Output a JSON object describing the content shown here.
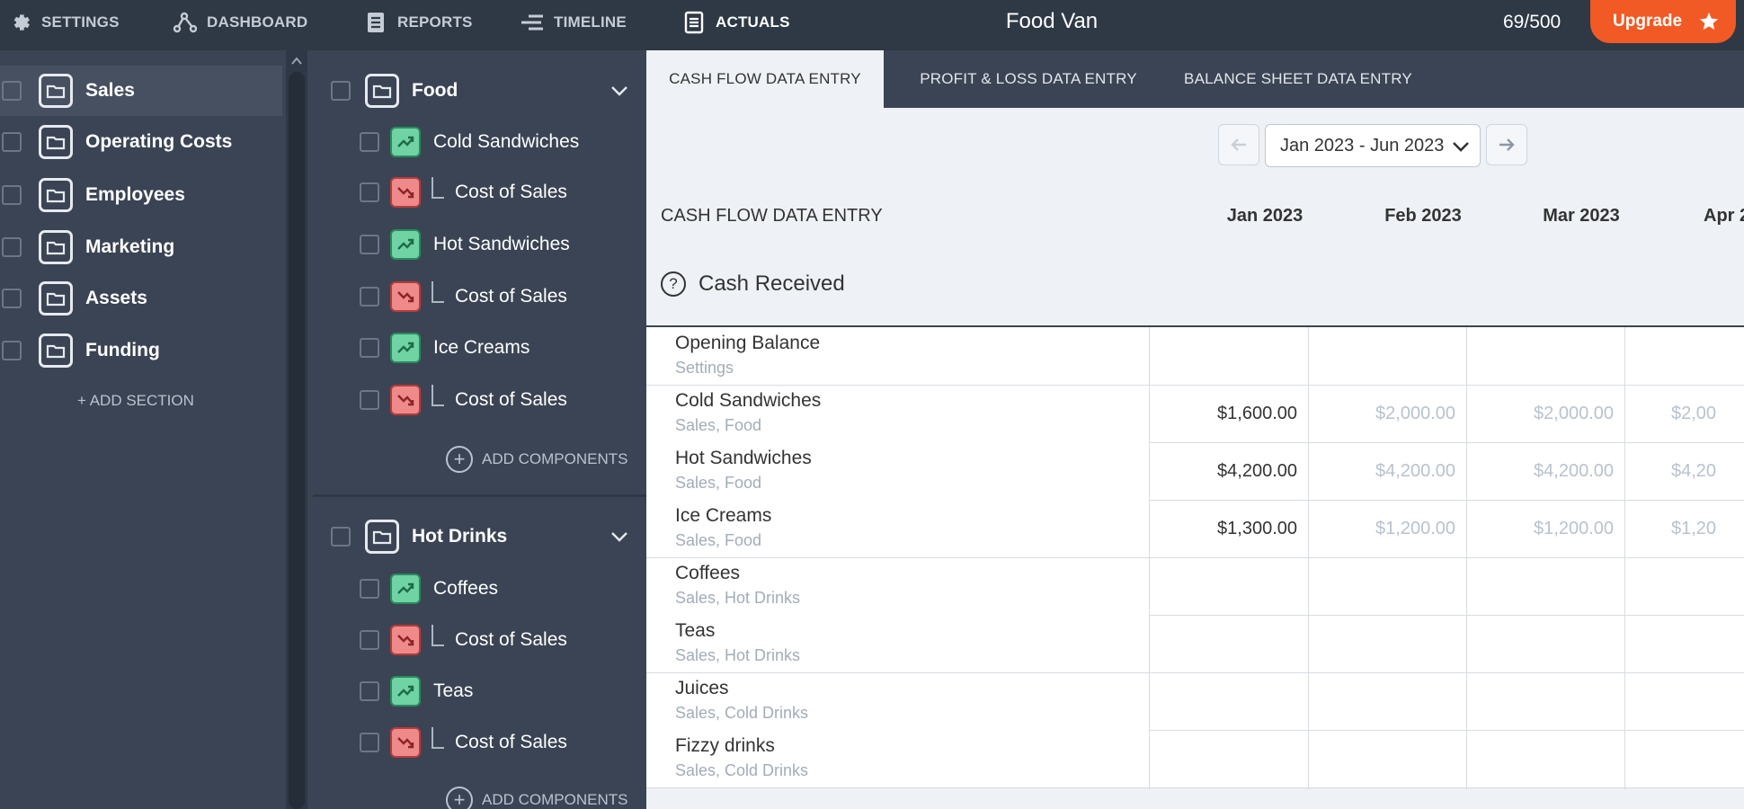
{
  "nav": {
    "settings": "SETTINGS",
    "dashboard": "DASHBOARD",
    "reports": "REPORTS",
    "timeline": "TIMELINE",
    "actuals": "ACTUALS",
    "app_title": "Food Van",
    "count": "69/500",
    "upgrade": "Upgrade"
  },
  "sections": [
    {
      "label": "Sales",
      "icon": "folder-icon"
    },
    {
      "label": "Operating Costs",
      "icon": "folder-icon"
    },
    {
      "label": "Employees",
      "icon": "folder-icon"
    },
    {
      "label": "Marketing",
      "icon": "folder-icon"
    },
    {
      "label": "Assets",
      "icon": "folder-icon"
    },
    {
      "label": "Funding",
      "icon": "folder-icon"
    }
  ],
  "add_section": "+ ADD SECTION",
  "groups": [
    {
      "label": "Food",
      "components": [
        {
          "label": "Cold Sandwiches",
          "kind": "revenue"
        },
        {
          "label": "Cost of Sales",
          "kind": "cost"
        },
        {
          "label": "Hot Sandwiches",
          "kind": "revenue"
        },
        {
          "label": "Cost of Sales",
          "kind": "cost"
        },
        {
          "label": "Ice Creams",
          "kind": "revenue"
        },
        {
          "label": "Cost of Sales",
          "kind": "cost"
        }
      ],
      "add_label": "ADD COMPONENTS"
    },
    {
      "label": "Hot Drinks",
      "components": [
        {
          "label": "Coffees",
          "kind": "revenue"
        },
        {
          "label": "Cost of Sales",
          "kind": "cost"
        },
        {
          "label": "Teas",
          "kind": "revenue"
        },
        {
          "label": "Cost of Sales",
          "kind": "cost"
        }
      ],
      "add_label": "ADD COMPONENTS"
    }
  ],
  "tabs": [
    {
      "label": "CASH FLOW DATA ENTRY",
      "active": true
    },
    {
      "label": "PROFIT & LOSS DATA ENTRY",
      "active": false
    },
    {
      "label": "BALANCE SHEET DATA ENTRY",
      "active": false
    }
  ],
  "date_range": "Jan 2023 - Jun 2023",
  "table": {
    "title": "CASH FLOW DATA ENTRY",
    "months": [
      "Jan 2023",
      "Feb 2023",
      "Mar 2023",
      "Apr 2"
    ],
    "section_label": "Cash Received",
    "help_glyph": "?",
    "rows": [
      {
        "name": "Opening Balance",
        "sub": "Settings",
        "values": [
          "",
          "",
          "",
          ""
        ]
      },
      {
        "name": "Cold Sandwiches",
        "sub": "Sales, Food",
        "values": [
          "$1,600.00",
          "$2,000.00",
          "$2,000.00",
          "$2,00"
        ]
      },
      {
        "name": "Hot Sandwiches",
        "sub": "Sales, Food",
        "values": [
          "$4,200.00",
          "$4,200.00",
          "$4,200.00",
          "$4,20"
        ]
      },
      {
        "name": "Ice Creams",
        "sub": "Sales, Food",
        "values": [
          "$1,300.00",
          "$1,200.00",
          "$1,200.00",
          "$1,20"
        ]
      },
      {
        "name": "Coffees",
        "sub": "Sales, Hot Drinks",
        "values": [
          "",
          "",
          "",
          ""
        ]
      },
      {
        "name": "Teas",
        "sub": "Sales, Hot Drinks",
        "values": [
          "",
          "",
          "",
          ""
        ]
      },
      {
        "name": "Juices",
        "sub": "Sales, Cold Drinks",
        "values": [
          "",
          "",
          "",
          ""
        ]
      },
      {
        "name": "Fizzy drinks",
        "sub": "Sales, Cold Drinks",
        "values": [
          "",
          "",
          "",
          ""
        ]
      }
    ]
  },
  "colors": {
    "nav_bg": "#2f3845",
    "panel_bg": "#3b4454",
    "content_bg": "#eef1f5",
    "upgrade": "#f15a24",
    "revenue_icon": "#6fd3a3",
    "cost_icon": "#ef8a8a",
    "projected_text": "#b8c2cf"
  }
}
